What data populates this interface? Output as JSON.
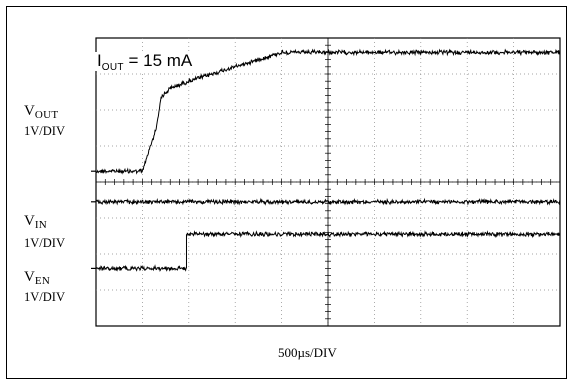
{
  "annotation": {
    "main": "I",
    "subscript": "OUT",
    "rest": " = 15 mA"
  },
  "time_scale_label": "500µs/DIV",
  "channels": [
    {
      "key": "vout",
      "main": "V",
      "sub": "OUT",
      "scale": "1V/DIV"
    },
    {
      "key": "vin",
      "main": "V",
      "sub": "IN",
      "scale": "1V/DIV"
    },
    {
      "key": "ven",
      "main": "V",
      "sub": "EN",
      "scale": "1V/DIV"
    }
  ],
  "chart_data": {
    "type": "line",
    "x_unit": "div",
    "y_unit": "div",
    "grid": true,
    "xlim": [
      0,
      10
    ],
    "ylim": [
      0,
      8
    ],
    "x_scale": "500µs/DIV",
    "series": [
      {
        "name": "V_OUT",
        "points": [
          [
            0,
            4.3
          ],
          [
            1.0,
            4.3
          ],
          [
            1.15,
            4.9
          ],
          [
            1.3,
            5.5
          ],
          [
            1.4,
            6.35
          ],
          [
            1.6,
            6.6
          ],
          [
            2.0,
            6.8
          ],
          [
            2.5,
            7.0
          ],
          [
            3.0,
            7.2
          ],
          [
            3.5,
            7.4
          ],
          [
            4.0,
            7.6
          ],
          [
            10.0,
            7.6
          ]
        ]
      },
      {
        "name": "V_IN",
        "points": [
          [
            0,
            3.45
          ],
          [
            10.0,
            3.45
          ]
        ]
      },
      {
        "name": "V_EN",
        "points": [
          [
            0,
            1.6
          ],
          [
            1.95,
            1.6
          ],
          [
            1.95,
            2.55
          ],
          [
            10.0,
            2.55
          ]
        ]
      }
    ]
  }
}
